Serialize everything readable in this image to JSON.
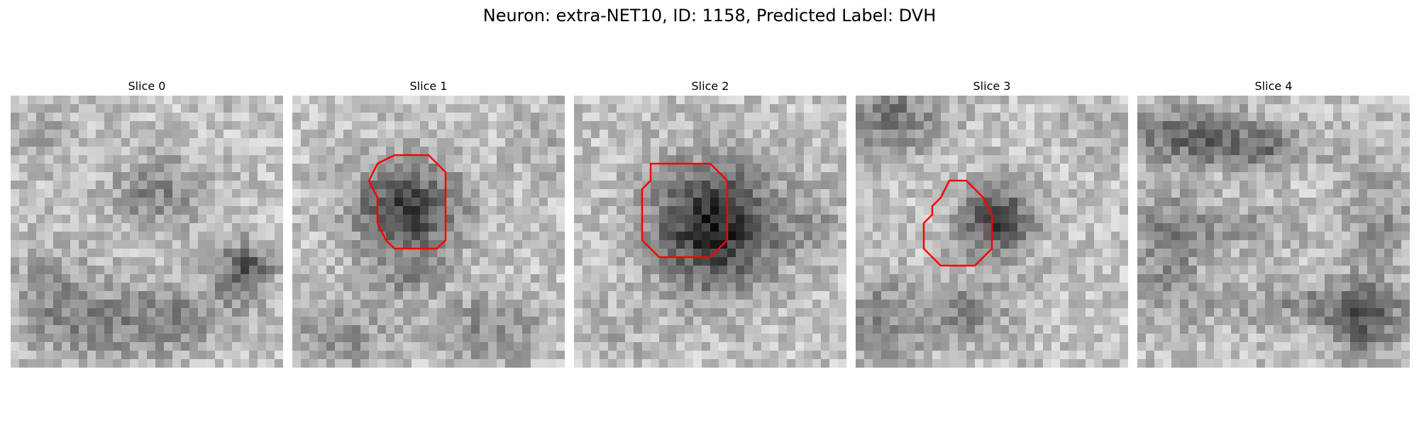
{
  "figure": {
    "title": "Neuron: extra-NET10, ID: 1158, Predicted Label: DVH"
  },
  "panels": [
    {
      "title": "Slice 0"
    },
    {
      "title": "Slice 1"
    },
    {
      "title": "Slice 2"
    },
    {
      "title": "Slice 3"
    },
    {
      "title": "Slice 4"
    }
  ],
  "colors": {
    "contour": "#ff0000",
    "background": "#ffffff"
  }
}
